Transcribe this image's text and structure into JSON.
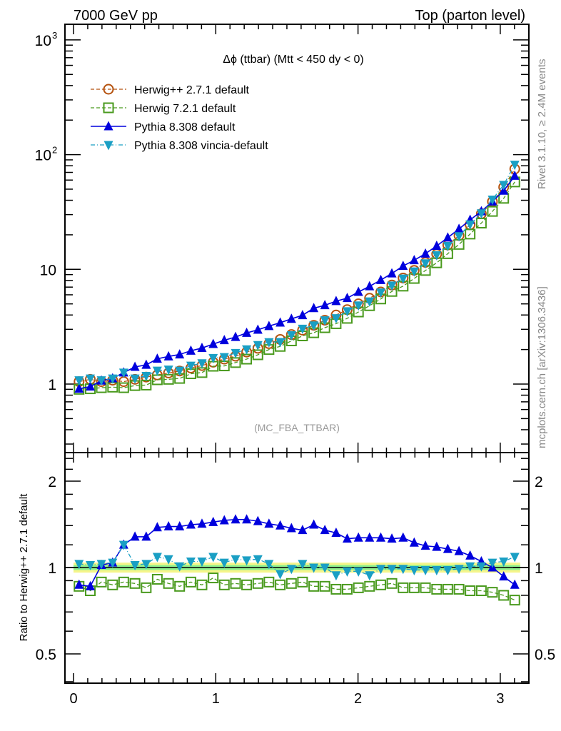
{
  "header": {
    "left_label": "7000 GeV pp",
    "right_label": "Top (parton level)"
  },
  "side_labels": {
    "rivet": "Rivet 3.1.10, ≥ 2.4M events",
    "mcplots": "mcplots.cern.ch [arXiv:1306.3436]"
  },
  "chart_data": [
    {
      "type": "line",
      "panel": "main",
      "title": "Δϕ (ttbar) (Mtt < 450 dy < 0)",
      "watermark": "(MC_FBA_TTBAR)",
      "xlabel": "",
      "ylabel": "",
      "xlim": [
        -0.05,
        3.2
      ],
      "ylim": [
        0.3,
        1300
      ],
      "yscale": "log",
      "grid": false,
      "legend_position": "top-left",
      "x_ticks": [
        "0",
        "1",
        "2",
        "3"
      ],
      "y_ticks": [
        "1",
        "10",
        "10^2",
        "10^3"
      ],
      "x": [
        0.039,
        0.118,
        0.196,
        0.275,
        0.353,
        0.432,
        0.511,
        0.589,
        0.668,
        0.746,
        0.825,
        0.903,
        0.982,
        1.06,
        1.139,
        1.217,
        1.296,
        1.374,
        1.453,
        1.532,
        1.61,
        1.689,
        1.767,
        1.846,
        1.924,
        2.003,
        2.081,
        2.16,
        2.238,
        2.317,
        2.395,
        2.474,
        2.553,
        2.631,
        2.71,
        2.788,
        2.867,
        2.945,
        3.024,
        3.102
      ],
      "series": [
        {
          "name": "Herwig++ 2.7.1 default",
          "color": "#b5520e",
          "marker": "open-circle",
          "line": "dashed",
          "values": [
            1.05,
            1.1,
            1.05,
            1.08,
            1.05,
            1.1,
            1.15,
            1.2,
            1.25,
            1.3,
            1.38,
            1.45,
            1.55,
            1.65,
            1.75,
            1.9,
            2.05,
            2.25,
            2.45,
            2.7,
            2.95,
            3.25,
            3.6,
            4.0,
            4.45,
            5.0,
            5.6,
            6.35,
            7.3,
            8.4,
            9.8,
            11.5,
            13.6,
            16.3,
            19.7,
            24.5,
            30.5,
            39.0,
            52.0,
            75.0
          ]
        },
        {
          "name": "Herwig 7.2.1 default",
          "color": "#4a9a1e",
          "marker": "open-square",
          "line": "dashed",
          "values": [
            0.9,
            0.91,
            0.93,
            0.94,
            0.93,
            0.97,
            0.98,
            1.09,
            1.1,
            1.12,
            1.23,
            1.26,
            1.43,
            1.44,
            1.54,
            1.65,
            1.8,
            2.0,
            2.13,
            2.38,
            2.63,
            2.8,
            3.1,
            3.36,
            3.74,
            4.25,
            4.82,
            5.52,
            6.42,
            7.14,
            8.33,
            9.78,
            11.4,
            13.7,
            16.5,
            20.3,
            25.3,
            32.0,
            41.6,
            57.8
          ]
        },
        {
          "name": "Pythia 8.308 default",
          "color": "#0000dd",
          "marker": "filled-triangle-up",
          "line": "solid",
          "values": [
            0.91,
            0.95,
            1.07,
            1.12,
            1.26,
            1.41,
            1.47,
            1.66,
            1.74,
            1.81,
            1.95,
            2.06,
            2.23,
            2.41,
            2.57,
            2.79,
            2.97,
            3.2,
            3.43,
            3.7,
            3.98,
            4.58,
            4.86,
            5.28,
            5.61,
            6.35,
            7.11,
            8.06,
            9.2,
            10.7,
            12.0,
            13.7,
            16.0,
            18.9,
            22.5,
            27.0,
            32.0,
            39.0,
            48.4,
            65.3
          ]
        },
        {
          "name": "Pythia 8.308 vincia-default",
          "color": "#1a9fc4",
          "marker": "filled-triangle-down",
          "line": "dash-dot",
          "values": [
            1.08,
            1.12,
            1.08,
            1.12,
            1.26,
            1.12,
            1.18,
            1.31,
            1.34,
            1.31,
            1.45,
            1.52,
            1.69,
            1.72,
            1.87,
            2.01,
            2.19,
            2.32,
            2.33,
            2.67,
            3.04,
            3.25,
            3.6,
            3.76,
            4.32,
            4.85,
            5.26,
            6.29,
            7.23,
            8.32,
            9.6,
            11.3,
            13.3,
            16.0,
            19.5,
            24.7,
            30.8,
            40.6,
            54.6,
            81.8
          ]
        }
      ]
    },
    {
      "type": "line",
      "panel": "ratio",
      "title": "",
      "xlabel": "",
      "ylabel": "Ratio to Herwig++ 2.7.1 default",
      "xlim": [
        -0.05,
        3.2
      ],
      "ylim": [
        0.4,
        2.5
      ],
      "yscale": "log",
      "grid": false,
      "x_ticks": [
        "0",
        "1",
        "2",
        "3"
      ],
      "y_ticks": [
        "0.5",
        "1",
        "2"
      ],
      "reference_band": {
        "center": 1.0,
        "inner": 0.02,
        "outer": 0.04,
        "inner_color": "#8ef08e",
        "outer_color": "#f5f58a"
      },
      "x": [
        0.039,
        0.118,
        0.196,
        0.275,
        0.353,
        0.432,
        0.511,
        0.589,
        0.668,
        0.746,
        0.825,
        0.903,
        0.982,
        1.06,
        1.139,
        1.217,
        1.296,
        1.374,
        1.453,
        1.532,
        1.61,
        1.689,
        1.767,
        1.846,
        1.924,
        2.003,
        2.081,
        2.16,
        2.238,
        2.317,
        2.395,
        2.474,
        2.553,
        2.631,
        2.71,
        2.788,
        2.867,
        2.945,
        3.024,
        3.102
      ],
      "series": [
        {
          "name": "Herwig 7.2.1 default",
          "color": "#4a9a1e",
          "marker": "open-square",
          "line": "dashed",
          "values": [
            0.86,
            0.83,
            0.89,
            0.87,
            0.89,
            0.88,
            0.85,
            0.91,
            0.88,
            0.86,
            0.89,
            0.87,
            0.92,
            0.87,
            0.88,
            0.87,
            0.88,
            0.89,
            0.87,
            0.88,
            0.89,
            0.86,
            0.86,
            0.84,
            0.84,
            0.85,
            0.86,
            0.87,
            0.88,
            0.85,
            0.85,
            0.85,
            0.84,
            0.84,
            0.84,
            0.83,
            0.83,
            0.82,
            0.8,
            0.77
          ]
        },
        {
          "name": "Pythia 8.308 default",
          "color": "#0000dd",
          "marker": "filled-triangle-up",
          "line": "solid",
          "values": [
            0.87,
            0.86,
            1.02,
            1.04,
            1.2,
            1.28,
            1.28,
            1.38,
            1.39,
            1.39,
            1.41,
            1.42,
            1.44,
            1.46,
            1.47,
            1.47,
            1.45,
            1.42,
            1.4,
            1.37,
            1.35,
            1.41,
            1.35,
            1.32,
            1.26,
            1.27,
            1.27,
            1.27,
            1.26,
            1.27,
            1.22,
            1.19,
            1.18,
            1.16,
            1.14,
            1.1,
            1.05,
            1.0,
            0.93,
            0.87
          ]
        },
        {
          "name": "Pythia 8.308 vincia-default",
          "color": "#1a9fc4",
          "marker": "filled-triangle-down",
          "line": "dash-dot",
          "values": [
            1.03,
            1.02,
            1.03,
            1.04,
            1.2,
            1.02,
            1.03,
            1.09,
            1.07,
            1.01,
            1.05,
            1.05,
            1.09,
            1.04,
            1.07,
            1.06,
            1.07,
            1.03,
            0.95,
            0.99,
            1.03,
            1.0,
            1.0,
            0.94,
            0.97,
            0.97,
            0.94,
            0.99,
            0.99,
            0.99,
            0.98,
            0.98,
            0.98,
            0.98,
            0.99,
            1.01,
            1.01,
            1.04,
            1.05,
            1.09
          ]
        }
      ]
    }
  ]
}
